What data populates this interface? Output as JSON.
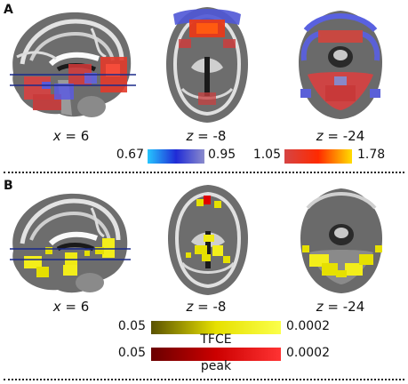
{
  "panels": [
    {
      "letter": "A",
      "slices": [
        {
          "axis": "x",
          "eq": " = ",
          "value": "6"
        },
        {
          "axis": "z",
          "eq": " = ",
          "value": "-8"
        },
        {
          "axis": "z",
          "eq": " = ",
          "value": "-24"
        }
      ],
      "colorbars": [
        {
          "min": "0.67",
          "max": "0.95",
          "colors": [
            "#26c6ff",
            "#1f2bd6",
            "#8b8bcc"
          ]
        },
        {
          "min": "1.05",
          "max": "1.78",
          "colors": [
            "#d54444",
            "#ff2a00",
            "#ffdd00"
          ]
        }
      ]
    },
    {
      "letter": "B",
      "slices": [
        {
          "axis": "x",
          "eq": " = ",
          "value": "6"
        },
        {
          "axis": "z",
          "eq": " = ",
          "value": "-8"
        },
        {
          "axis": "z",
          "eq": " = ",
          "value": "-24"
        }
      ],
      "colorbars": [
        {
          "min": "0.05",
          "max": "0.0002",
          "label": "TFCE",
          "colors": [
            "#5a5200",
            "#e6e000",
            "#fbff4a"
          ]
        },
        {
          "min": "0.05",
          "max": "0.0002",
          "label": "peak",
          "colors": [
            "#6a0000",
            "#cc0000",
            "#ff3333"
          ]
        }
      ]
    }
  ]
}
